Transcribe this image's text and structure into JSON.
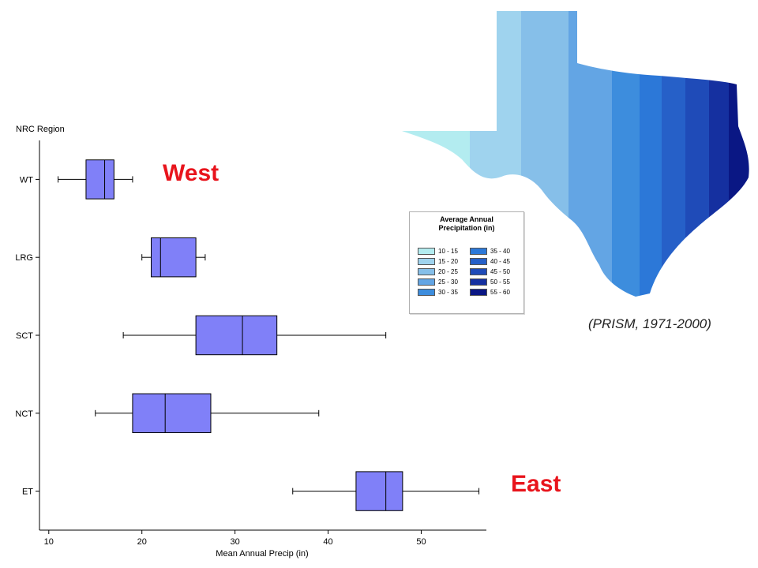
{
  "chart_data": {
    "type": "boxplot",
    "orientation": "horizontal",
    "ylabel": "NRC Region",
    "xlabel": "Mean Annual Precip (in)",
    "xlim": [
      9,
      57
    ],
    "xticks": [
      10,
      20,
      30,
      40,
      50
    ],
    "categories": [
      "WT",
      "LRG",
      "SCT",
      "NCT",
      "ET"
    ],
    "boxes": [
      {
        "category": "WT",
        "min": 11,
        "q1": 14,
        "median": 16,
        "q3": 17,
        "max": 19
      },
      {
        "category": "LRG",
        "min": 20,
        "q1": 21,
        "median": 22,
        "q3": 25.8,
        "max": 26.8
      },
      {
        "category": "SCT",
        "min": 18,
        "q1": 25.8,
        "median": 30.8,
        "q3": 34.5,
        "max": 46.2
      },
      {
        "category": "NCT",
        "min": 15,
        "q1": 19,
        "median": 22.5,
        "q3": 27.4,
        "max": 39
      },
      {
        "category": "ET",
        "min": 36.2,
        "q1": 43,
        "median": 46.2,
        "q3": 48,
        "max": 56.2
      }
    ],
    "box_color": "#8080f8",
    "grid": false
  },
  "annotations": {
    "west": "West",
    "east": "East",
    "color": "#e8141c"
  },
  "map": {
    "legend_title": "Average Annual\nPrecipitation (in)",
    "legend_items": [
      {
        "label": "10 - 15",
        "color": "#b3ecf0"
      },
      {
        "label": "15 - 20",
        "color": "#9fd3ee"
      },
      {
        "label": "20 - 25",
        "color": "#86bfe9"
      },
      {
        "label": "25 - 30",
        "color": "#63a5e4"
      },
      {
        "label": "30 - 35",
        "color": "#3d8ddd"
      },
      {
        "label": "35 - 40",
        "color": "#2c78d8"
      },
      {
        "label": "40 - 45",
        "color": "#2660c8"
      },
      {
        "label": "45 - 50",
        "color": "#1f4bb8"
      },
      {
        "label": "50 - 55",
        "color": "#1530a0"
      },
      {
        "label": "55 - 60",
        "color": "#0a1784"
      }
    ],
    "source": "(PRISM, 1971-2000)"
  }
}
